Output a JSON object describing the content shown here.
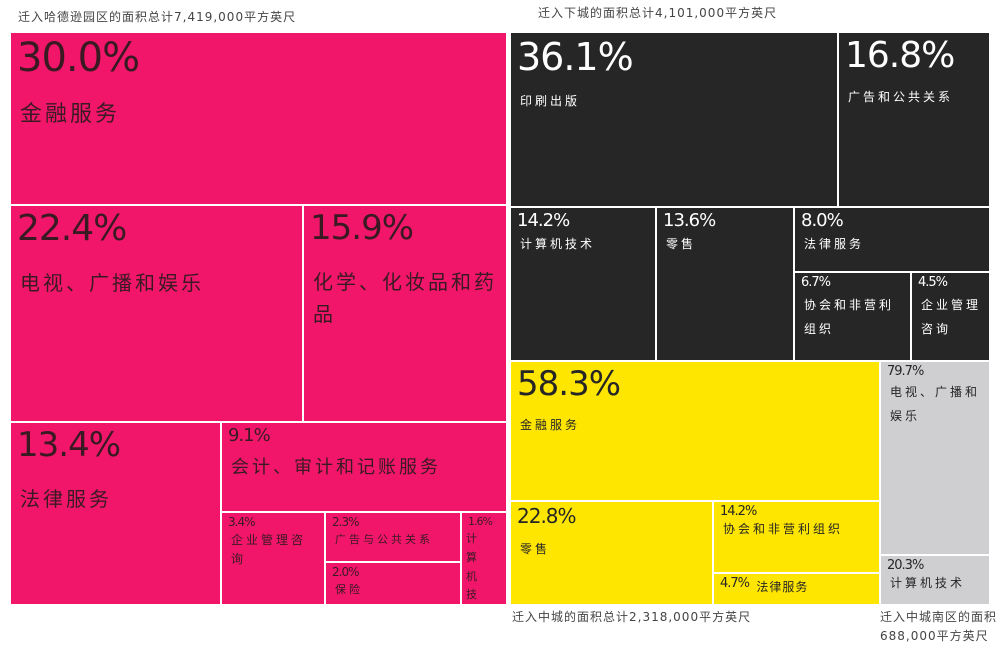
{
  "chart_data": {
    "type": "treemap",
    "colors": {
      "harlem": "#f2166b",
      "lower": "#262626",
      "midtown": "#ffe600",
      "midtown_south": "#cfcfd1"
    },
    "groups": [
      {
        "id": "harlem",
        "caption": "迁入哈德逊园区的面积总计7,419,000平方英尺",
        "items": [
          {
            "pct": "30.0%",
            "label": "金融服务",
            "value": 30.0
          },
          {
            "pct": "22.4%",
            "label": "电视、广播和娱乐",
            "value": 22.4
          },
          {
            "pct": "15.9%",
            "label": "化学、化妆品和药品",
            "value": 15.9
          },
          {
            "pct": "13.4%",
            "label": "法律服务",
            "value": 13.4
          },
          {
            "pct": "9.1%",
            "label": "会计、审计和记账服务",
            "value": 9.1
          },
          {
            "pct": "3.4%",
            "label": "企业管理咨询",
            "value": 3.4
          },
          {
            "pct": "2.3%",
            "label": "广告与公共关系",
            "value": 2.3
          },
          {
            "pct": "2.0%",
            "label": "保险",
            "value": 2.0
          },
          {
            "pct": "1.6%",
            "label": "计算机技术",
            "value": 1.6
          }
        ]
      },
      {
        "id": "lower",
        "caption": "迁入下城的面积总计4,101,000平方英尺",
        "items": [
          {
            "pct": "36.1%",
            "label": "印刷出版",
            "value": 36.1
          },
          {
            "pct": "16.8%",
            "label": "广告和公共关系",
            "value": 16.8
          },
          {
            "pct": "14.2%",
            "label": "计算机技术",
            "value": 14.2
          },
          {
            "pct": "13.6%",
            "label": "零售",
            "value": 13.6
          },
          {
            "pct": "8.0%",
            "label": "法律服务",
            "value": 8.0
          },
          {
            "pct": "6.7%",
            "label": "协会和非营利组织",
            "value": 6.7
          },
          {
            "pct": "4.5%",
            "label": "企业管理咨询",
            "value": 4.5
          }
        ]
      },
      {
        "id": "midtown",
        "caption": "迁入中城的面积总计2,318,000平方英尺",
        "items": [
          {
            "pct": "58.3%",
            "label": "金融服务",
            "value": 58.3
          },
          {
            "pct": "22.8%",
            "label": "零售",
            "value": 22.8
          },
          {
            "pct": "14.2%",
            "label": "协会和非营利组织",
            "value": 14.2
          },
          {
            "pct": "4.7%",
            "label": "法律服务",
            "value": 4.7
          }
        ]
      },
      {
        "id": "midtown_south",
        "caption": "迁入中城南区的面积",
        "caption2": "688,000平方英尺",
        "items": [
          {
            "pct": "79.7%",
            "label": "电视、广播和娱乐",
            "value": 79.7
          },
          {
            "pct": "20.3%",
            "label": "计算机技术",
            "value": 20.3
          }
        ]
      }
    ]
  }
}
